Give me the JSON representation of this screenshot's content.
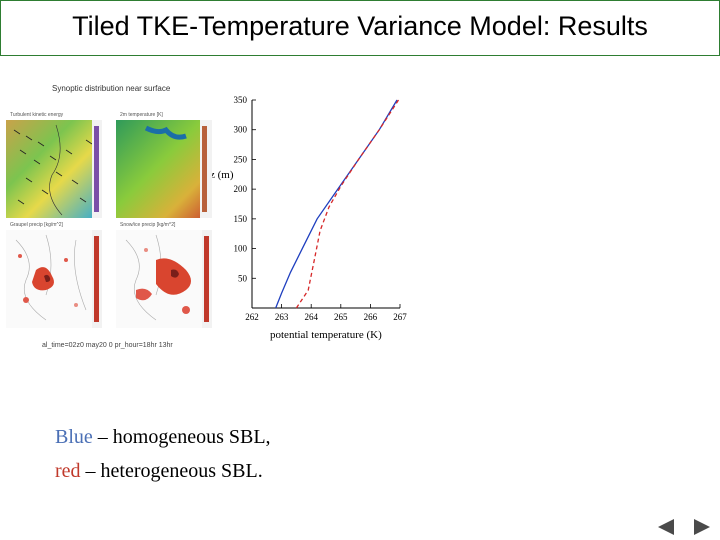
{
  "slide": {
    "title": "Tiled TKE-Temperature Variance Model: Results"
  },
  "maps": {
    "caption": "Synoptic distribution near surface",
    "panels": [
      {
        "label": "Turbulent kinetic energy"
      },
      {
        "label": "2m temperature [K]"
      },
      {
        "label": "Graupel precip [kg/m^2]"
      },
      {
        "label": "Snow/ice precip [kg/m^2]"
      }
    ],
    "footer": "al_time=02z0 may20 0  pr_hour=18hr   13hr"
  },
  "chart_data": {
    "type": "line",
    "xlabel": "potential temperature (K)",
    "ylabel": "z (m)",
    "xlim": [
      262,
      267
    ],
    "ylim": [
      0,
      350
    ],
    "xticks": [
      262,
      263,
      264,
      265,
      266,
      267
    ],
    "yticks": [
      50,
      100,
      150,
      200,
      250,
      300,
      350
    ],
    "series": [
      {
        "color": "#1f3fbf",
        "style": "solid",
        "points": [
          [
            262.8,
            0
          ],
          [
            263.0,
            25
          ],
          [
            263.3,
            60
          ],
          [
            263.7,
            100
          ],
          [
            264.2,
            150
          ],
          [
            264.9,
            200
          ],
          [
            265.6,
            250
          ],
          [
            266.3,
            300
          ],
          [
            266.9,
            350
          ]
        ]
      },
      {
        "color": "#d62728",
        "style": "dashed",
        "points": [
          [
            263.5,
            0
          ],
          [
            263.9,
            30
          ],
          [
            264.1,
            80
          ],
          [
            264.3,
            130
          ],
          [
            264.6,
            170
          ],
          [
            265.0,
            205
          ],
          [
            265.6,
            250
          ],
          [
            266.3,
            300
          ],
          [
            266.95,
            350
          ]
        ]
      }
    ]
  },
  "legend": {
    "line1": {
      "color_word": "Blue",
      "text": " – homogeneous SBL,"
    },
    "line2": {
      "color_word": "red",
      "text": " – heterogeneous SBL."
    }
  },
  "nav": {
    "prev_icon": "prev-triangle-icon",
    "next_icon": "next-triangle-icon"
  }
}
